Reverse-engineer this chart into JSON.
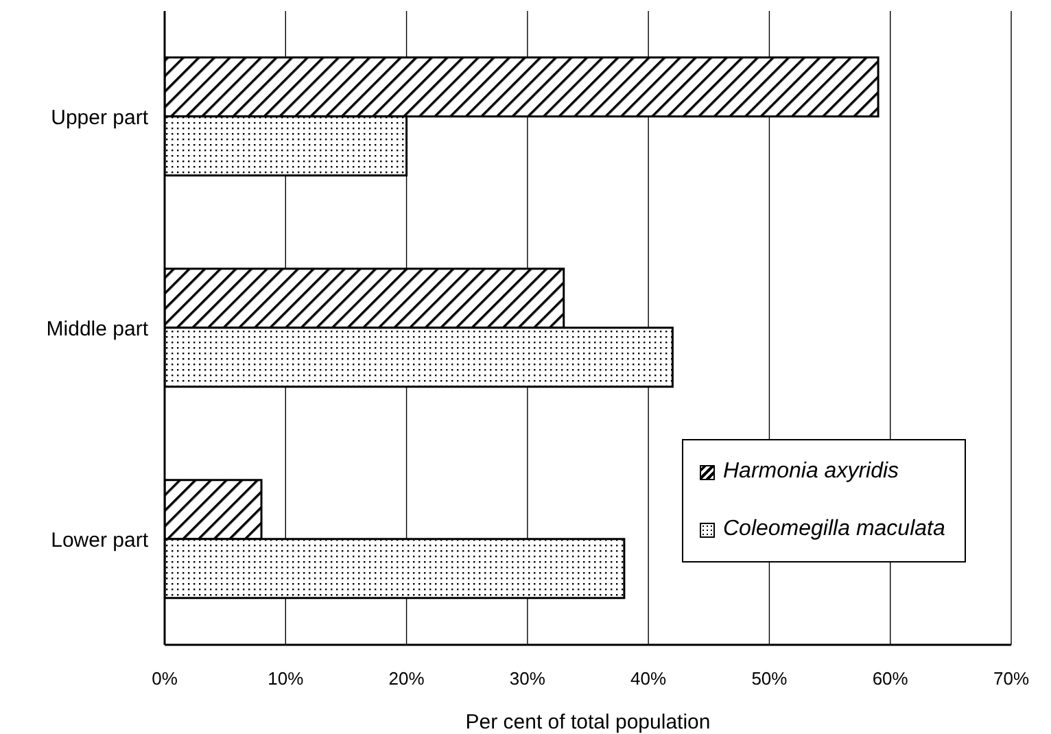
{
  "chart_data": {
    "type": "bar",
    "orientation": "horizontal",
    "xlabel": "Per cent of total population",
    "categories": [
      "Upper part",
      "Middle part",
      "Lower part"
    ],
    "series": [
      {
        "name": "Harmonia axyridis",
        "color": "#000000",
        "values": [
          59,
          33,
          8
        ]
      },
      {
        "name": "Coleomegilla maculata",
        "color": "#000000",
        "values": [
          20,
          42,
          38
        ]
      }
    ],
    "xlim": [
      0,
      70
    ],
    "xticks": [
      {
        "value": 0,
        "label": "0%"
      },
      {
        "value": 10,
        "label": "10%"
      },
      {
        "value": 20,
        "label": "20%"
      },
      {
        "value": 30,
        "label": "30%"
      },
      {
        "value": 40,
        "label": "40%"
      },
      {
        "value": 50,
        "label": "50%"
      },
      {
        "value": 60,
        "label": "60%"
      },
      {
        "value": 70,
        "label": "70%"
      }
    ],
    "grid": "x",
    "legend": "bottom right"
  }
}
